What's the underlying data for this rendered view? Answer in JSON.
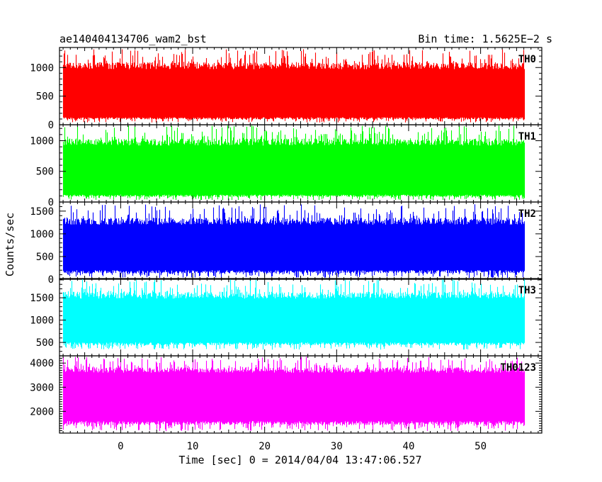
{
  "header": {
    "left": "ae140404134706_wam2_bst",
    "right": "Bin time: 1.5625E−2 s"
  },
  "xlabel": "Time [sec] 0 = 2014/04/04 13:47:06.527",
  "ylabel": "Counts/sec",
  "chart_data": [
    {
      "type": "line",
      "label": "TH0",
      "color": "#ff0000",
      "xlim": [
        -8.5,
        58.5
      ],
      "ylim": [
        0,
        1350
      ],
      "yticks": [
        0,
        500,
        1000
      ],
      "ytick_labels": [
        "0",
        "500",
        "1000"
      ],
      "x_range": [
        -8,
        56
      ],
      "bin_time": 0.015625,
      "y_band": [
        130,
        970
      ],
      "y_extremes": [
        40,
        1320
      ]
    },
    {
      "type": "line",
      "label": "TH1",
      "color": "#00ff00",
      "xlim": [
        -8.5,
        58.5
      ],
      "ylim": [
        0,
        1260
      ],
      "yticks": [
        0,
        500,
        1000
      ],
      "ytick_labels": [
        "0",
        "500",
        "1000"
      ],
      "x_range": [
        -8,
        56
      ],
      "bin_time": 0.015625,
      "y_band": [
        120,
        920
      ],
      "y_extremes": [
        30,
        1250
      ]
    },
    {
      "type": "line",
      "label": "TH2",
      "color": "#0000ff",
      "xlim": [
        -8.5,
        58.5
      ],
      "ylim": [
        0,
        1700
      ],
      "yticks": [
        0,
        500,
        1000,
        1500
      ],
      "ytick_labels": [
        "0",
        "500",
        "1000",
        "1500"
      ],
      "x_range": [
        -8,
        56
      ],
      "bin_time": 0.015625,
      "y_band": [
        200,
        1200
      ],
      "y_extremes": [
        30,
        1650
      ]
    },
    {
      "type": "line",
      "label": "TH3",
      "color": "#00ffff",
      "xlim": [
        -8.5,
        58.5
      ],
      "ylim": [
        200,
        1930
      ],
      "yticks": [
        500,
        1000,
        1500
      ],
      "ytick_labels": [
        "500",
        "1000",
        "1500"
      ],
      "x_range": [
        -8,
        56
      ],
      "bin_time": 0.015625,
      "y_band": [
        500,
        1480
      ],
      "y_extremes": [
        340,
        1920
      ]
    },
    {
      "type": "line",
      "label": "TH0123",
      "color": "#ff00ff",
      "xlim": [
        -8.5,
        58.5
      ],
      "ylim": [
        1100,
        4300
      ],
      "yticks": [
        2000,
        3000,
        4000
      ],
      "ytick_labels": [
        "2000",
        "3000",
        "4000"
      ],
      "xticks": [
        0,
        10,
        20,
        30,
        40,
        50
      ],
      "xtick_labels": [
        "0",
        "10",
        "20",
        "30",
        "40",
        "50"
      ],
      "x_range": [
        -8,
        56
      ],
      "bin_time": 0.015625,
      "y_band": [
        1600,
        3600
      ],
      "y_extremes": [
        1180,
        4260
      ]
    }
  ]
}
